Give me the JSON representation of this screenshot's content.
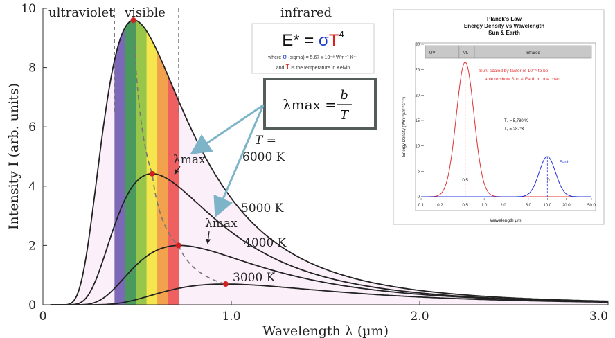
{
  "chart_data": [
    {
      "type": "line",
      "xlabel": "Wavelength λ (µm)",
      "ylabel": "Intensity I (arb. units)",
      "xlim": [
        0,
        3.0
      ],
      "ylim": [
        0,
        10
      ],
      "x_ticks": [
        "0",
        "1.0",
        "2.0",
        "3.0"
      ],
      "y_ticks": [
        "0",
        "2",
        "4",
        "6",
        "8",
        "10"
      ],
      "regions": [
        "ultraviolet",
        "visible",
        "infrared"
      ],
      "temperature_label": "T =",
      "series": [
        {
          "name": "6000 K",
          "temperature": 6000,
          "peak": [
            0.48,
            9.6
          ]
        },
        {
          "name": "5000 K",
          "temperature": 5000,
          "peak": [
            0.58,
            4.42
          ]
        },
        {
          "name": "4000 K",
          "temperature": 4000,
          "peak": [
            0.72,
            2.0
          ]
        },
        {
          "name": "3000 K",
          "temperature": 3000,
          "peak": [
            0.97,
            0.7
          ]
        }
      ],
      "peak_label": "λmax",
      "spectrum_colors": [
        "#7b68b6",
        "#4a9a5e",
        "#98c64a",
        "#f5e64e",
        "#f2a24c",
        "#ef6060"
      ],
      "colors": {
        "curve": "#222222",
        "peak_dot": "#d02020",
        "arrow": "#7eb4c8"
      }
    },
    {
      "type": "line",
      "title": [
        "Planck's Law",
        "Energy Density vs Wavelength",
        "Sun & Earth"
      ],
      "xlabel": "Wavelength µm",
      "ylabel": "Energy Density (Wm⁻²µm⁻¹sr⁻¹)",
      "xscale": "log",
      "xlim": [
        0.1,
        50
      ],
      "ylim": [
        0,
        30
      ],
      "x_ticks": [
        "0.1",
        "0.2",
        "0.5",
        "1.0",
        "2.0",
        "5.0",
        "10.0",
        "20.0",
        "50.0"
      ],
      "y_ticks": [
        "0",
        "5",
        "10",
        "15",
        "20",
        "25",
        "30"
      ],
      "bands": [
        "UV",
        "VL",
        "Infrared"
      ],
      "series": [
        {
          "name": "Sun",
          "peak_x": 0.5,
          "peak_y": 26.5,
          "color": "#e03030"
        },
        {
          "name": "Earth",
          "peak_x": 10,
          "peak_y": 7.9,
          "color": "#2030e0"
        }
      ],
      "peak_labels": [
        "0.5",
        "10"
      ],
      "annotation": [
        "Sun: scaled by factor of 10⁻⁶ to be",
        "able to show Sun & Earth in one chart"
      ],
      "temps": [
        "Tₛ = 5,780°K",
        "Tₑ = 287°K"
      ],
      "earth_label": "Earth"
    }
  ],
  "formula": {
    "stefan": {
      "lhs": "E* = ",
      "sigma": "σ",
      "T": "T",
      "exp": "4"
    },
    "where_line": {
      "pre": "where ",
      "sigma": "σ",
      "rest": " (sigma) = 5.67 x 10⁻⁸ Wm⁻² K⁻⁴"
    },
    "and_line": {
      "pre": "and ",
      "T": "T",
      "rest": " is the temperature in Kelvin"
    },
    "wien": {
      "lhs": "λmax =",
      "num": "b",
      "den": "T"
    }
  }
}
